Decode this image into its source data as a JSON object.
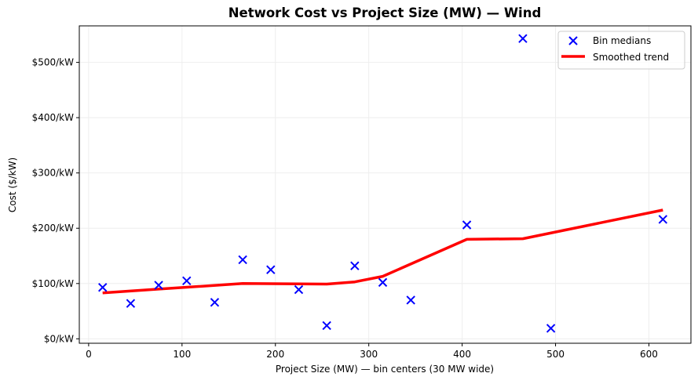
{
  "chart_data": {
    "type": "scatter",
    "title": "Network Cost vs Project Size (MW) — Wind",
    "xlabel": "Project Size (MW) — bin centers (30 MW wide)",
    "ylabel": "Cost ($/kW)",
    "xlim": [
      -10,
      645
    ],
    "ylim": [
      -8,
      566
    ],
    "x_ticks": [
      0,
      100,
      200,
      300,
      400,
      500,
      600
    ],
    "x_tick_labels": [
      "0",
      "100",
      "200",
      "300",
      "400",
      "500",
      "600"
    ],
    "y_ticks": [
      0,
      100,
      200,
      300,
      400,
      500
    ],
    "y_tick_labels": [
      "$0/kW",
      "$100/kW",
      "$200/kW",
      "$300/kW",
      "$400/kW",
      "$500/kW"
    ],
    "grid": true,
    "legend_position": "top-right",
    "series": [
      {
        "name": "Bin medians",
        "type": "scatter",
        "marker": "x",
        "color": "#0000ff",
        "x": [
          15,
          45,
          75,
          105,
          135,
          165,
          195,
          225,
          255,
          285,
          315,
          345,
          405,
          465,
          495,
          615
        ],
        "y": [
          93,
          64,
          97,
          105,
          66,
          143,
          125,
          89,
          24,
          132,
          102,
          70,
          206,
          543,
          19,
          216
        ]
      },
      {
        "name": "Smoothed trend",
        "type": "line",
        "color": "#ff0000",
        "x": [
          15,
          75,
          165,
          255,
          285,
          315,
          405,
          465,
          615
        ],
        "y": [
          83,
          90,
          100,
          99,
          103,
          113,
          180,
          181,
          233
        ]
      }
    ]
  }
}
